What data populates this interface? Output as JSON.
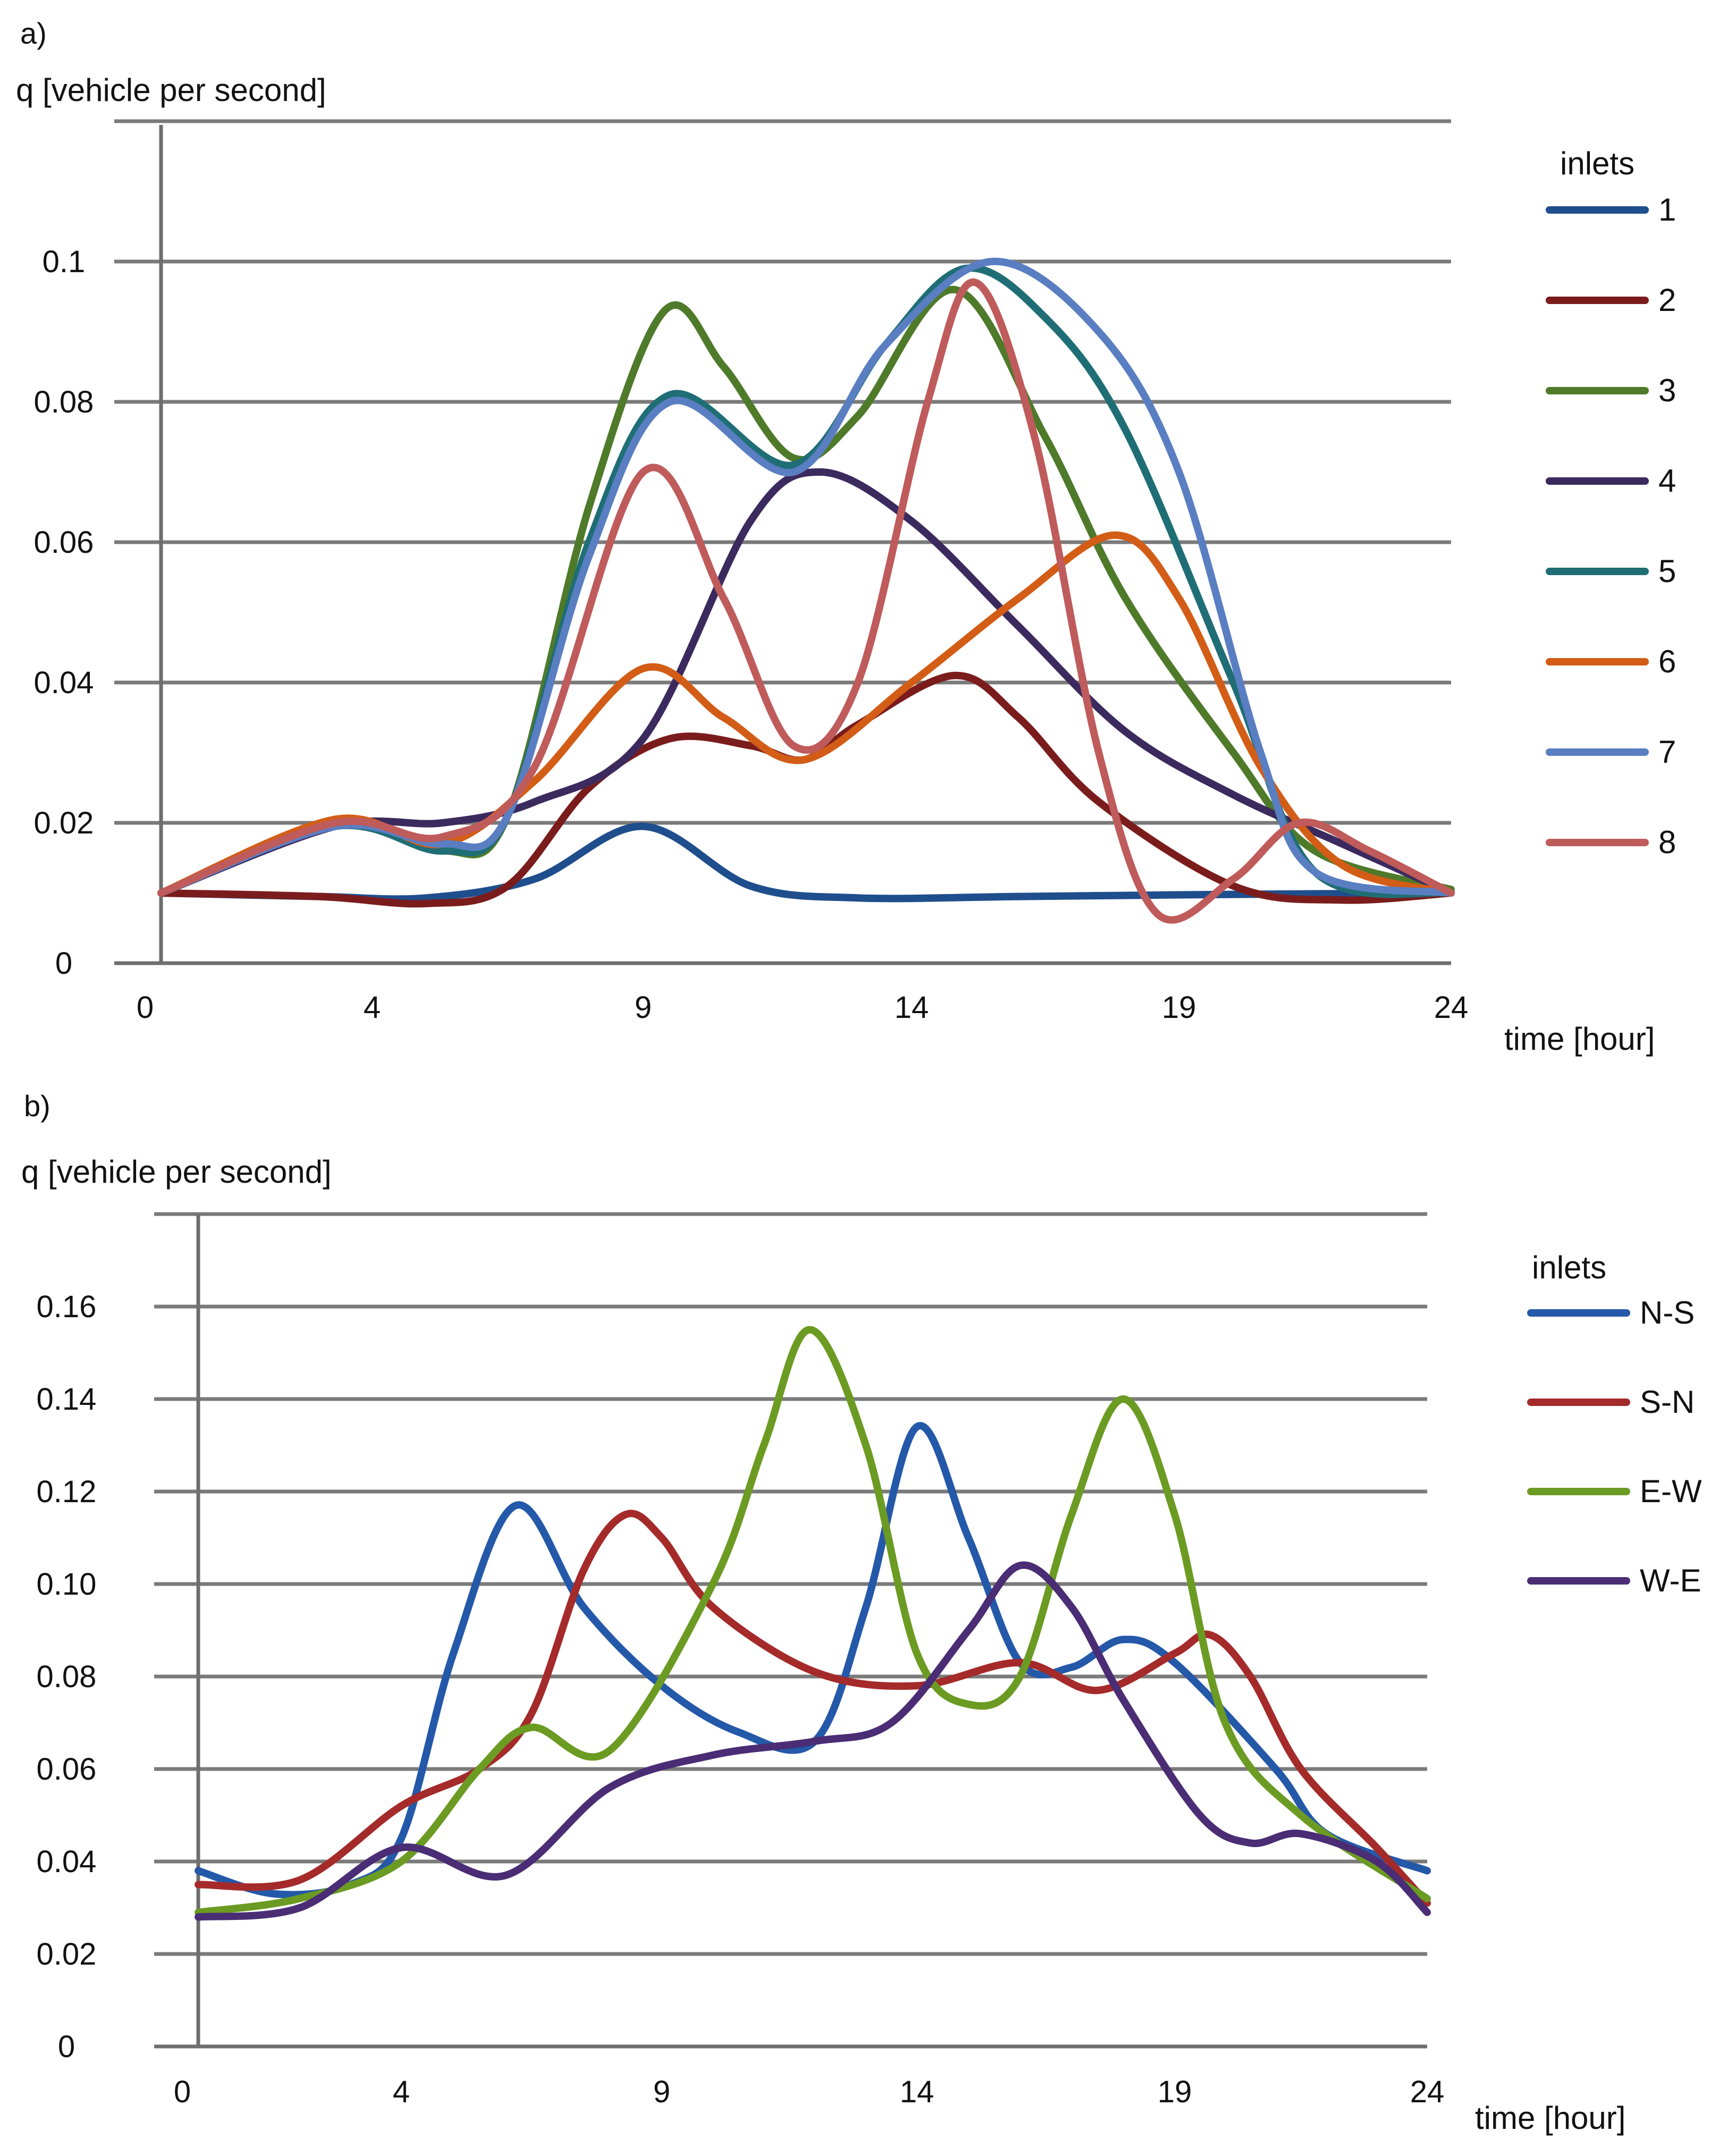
{
  "chart_data": [
    {
      "type": "line",
      "panel_label": "a)",
      "ylabel": "q [vehicle per second]",
      "xlabel": "time [hour]",
      "xlim": [
        0,
        24
      ],
      "ylim": [
        0,
        0.12
      ],
      "x_ticks": [
        {
          "value": 0,
          "label": "0"
        },
        {
          "value": 4,
          "label": "4"
        },
        {
          "value": 9,
          "label": "9"
        },
        {
          "value": 14,
          "label": "14"
        },
        {
          "value": 19,
          "label": "19"
        },
        {
          "value": 24,
          "label": "24"
        }
      ],
      "y_ticks": [
        {
          "value": 0,
          "label": "0"
        },
        {
          "value": 0.02,
          "label": "0.02"
        },
        {
          "value": 0.04,
          "label": "0.04"
        },
        {
          "value": 0.06,
          "label": "0.06"
        },
        {
          "value": 0.08,
          "label": "0.08"
        },
        {
          "value": 0.1,
          "label": "0.1"
        }
      ],
      "gridlines": [
        0.02,
        0.04,
        0.06,
        0.08,
        0.1,
        0.12
      ],
      "legend_title": "inlets",
      "legend_position": "right",
      "series": [
        {
          "name": "1",
          "color": "#1f4e8c",
          "points": [
            [
              0,
              0.01
            ],
            [
              3,
              0.0095
            ],
            [
              5,
              0.0093
            ],
            [
              7,
              0.012
            ],
            [
              9,
              0.0195
            ],
            [
              11,
              0.011
            ],
            [
              13,
              0.0093
            ],
            [
              16,
              0.0095
            ],
            [
              20,
              0.0098
            ],
            [
              24,
              0.01
            ]
          ]
        },
        {
          "name": "2",
          "color": "#7b1c1c",
          "points": [
            [
              0,
              0.01
            ],
            [
              3,
              0.0095
            ],
            [
              5,
              0.0085
            ],
            [
              6.5,
              0.011
            ],
            [
              8,
              0.025
            ],
            [
              9.5,
              0.032
            ],
            [
              11,
              0.031
            ],
            [
              12,
              0.029
            ],
            [
              13,
              0.034
            ],
            [
              14.8,
              0.041
            ],
            [
              16,
              0.035
            ],
            [
              17.5,
              0.023
            ],
            [
              20,
              0.011
            ],
            [
              22,
              0.009
            ],
            [
              24,
              0.01
            ]
          ]
        },
        {
          "name": "3",
          "color": "#4e7a2a",
          "points": [
            [
              0,
              0.01
            ],
            [
              3.3,
              0.02
            ],
            [
              5.3,
              0.016
            ],
            [
              6.5,
              0.021
            ],
            [
              8,
              0.065
            ],
            [
              9.4,
              0.093
            ],
            [
              10.5,
              0.085
            ],
            [
              11.8,
              0.072
            ],
            [
              13,
              0.078
            ],
            [
              14.8,
              0.096
            ],
            [
              16.5,
              0.075
            ],
            [
              18,
              0.052
            ],
            [
              20,
              0.03
            ],
            [
              21.5,
              0.016
            ],
            [
              24,
              0.0105
            ]
          ]
        },
        {
          "name": "4",
          "color": "#3b2a5e",
          "points": [
            [
              0,
              0.01
            ],
            [
              3.3,
              0.0195
            ],
            [
              5.3,
              0.02
            ],
            [
              7,
              0.023
            ],
            [
              9,
              0.032
            ],
            [
              11,
              0.063
            ],
            [
              12.3,
              0.07
            ],
            [
              14,
              0.063
            ],
            [
              16,
              0.048
            ],
            [
              18,
              0.033
            ],
            [
              20,
              0.024
            ],
            [
              22,
              0.017
            ],
            [
              24,
              0.01
            ]
          ]
        },
        {
          "name": "5",
          "color": "#1f6e75",
          "points": [
            [
              0,
              0.01
            ],
            [
              3.3,
              0.0195
            ],
            [
              5.3,
              0.016
            ],
            [
              6.5,
              0.021
            ],
            [
              8,
              0.06
            ],
            [
              9.5,
              0.081
            ],
            [
              11.8,
              0.071
            ],
            [
              13.5,
              0.088
            ],
            [
              15,
              0.099
            ],
            [
              16.5,
              0.092
            ],
            [
              18,
              0.076
            ],
            [
              20,
              0.04
            ],
            [
              21.5,
              0.013
            ],
            [
              24,
              0.01
            ]
          ]
        },
        {
          "name": "6",
          "color": "#d35d16",
          "points": [
            [
              0,
              0.01
            ],
            [
              3.3,
              0.0205
            ],
            [
              5.3,
              0.017
            ],
            [
              7,
              0.026
            ],
            [
              9,
              0.042
            ],
            [
              10.5,
              0.035
            ],
            [
              12,
              0.029
            ],
            [
              14,
              0.04
            ],
            [
              16,
              0.052
            ],
            [
              17.8,
              0.061
            ],
            [
              19,
              0.052
            ],
            [
              20.5,
              0.028
            ],
            [
              22,
              0.014
            ],
            [
              24,
              0.01
            ]
          ]
        },
        {
          "name": "7",
          "color": "#5a7ec2",
          "points": [
            [
              0,
              0.01
            ],
            [
              3.3,
              0.0195
            ],
            [
              5.3,
              0.017
            ],
            [
              6.5,
              0.021
            ],
            [
              8,
              0.058
            ],
            [
              9.5,
              0.08
            ],
            [
              11.8,
              0.07
            ],
            [
              13.5,
              0.088
            ],
            [
              15.5,
              0.1
            ],
            [
              17.5,
              0.09
            ],
            [
              19,
              0.07
            ],
            [
              20.5,
              0.03
            ],
            [
              21.5,
              0.013
            ],
            [
              24,
              0.01
            ]
          ]
        },
        {
          "name": "8",
          "color": "#bf5b5b",
          "points": [
            [
              0,
              0.01
            ],
            [
              3.3,
              0.02
            ],
            [
              5.3,
              0.018
            ],
            [
              7,
              0.028
            ],
            [
              9,
              0.07
            ],
            [
              10.5,
              0.052
            ],
            [
              11.8,
              0.031
            ],
            [
              13,
              0.04
            ],
            [
              14.3,
              0.08
            ],
            [
              15.2,
              0.097
            ],
            [
              16.3,
              0.075
            ],
            [
              17.5,
              0.03
            ],
            [
              18.6,
              0.007
            ],
            [
              20,
              0.012
            ],
            [
              21.2,
              0.02
            ],
            [
              22.5,
              0.016
            ],
            [
              24,
              0.01
            ]
          ]
        }
      ]
    },
    {
      "type": "line",
      "panel_label": "b)",
      "ylabel": "q [vehicle per second]",
      "xlabel": "time [hour]",
      "xlim": [
        0,
        24
      ],
      "ylim": [
        0,
        0.18
      ],
      "x_ticks": [
        {
          "value": 0,
          "label": "0"
        },
        {
          "value": 4,
          "label": "4"
        },
        {
          "value": 9,
          "label": "9"
        },
        {
          "value": 14,
          "label": "14"
        },
        {
          "value": 19,
          "label": "19"
        },
        {
          "value": 24,
          "label": "24"
        }
      ],
      "y_ticks": [
        {
          "value": 0,
          "label": "0"
        },
        {
          "value": 0.02,
          "label": "0.02"
        },
        {
          "value": 0.04,
          "label": "0.04"
        },
        {
          "value": 0.06,
          "label": "0.06"
        },
        {
          "value": 0.08,
          "label": "0.08"
        },
        {
          "value": 0.1,
          "label": "0.10"
        },
        {
          "value": 0.12,
          "label": "0.12"
        },
        {
          "value": 0.14,
          "label": "0.14"
        },
        {
          "value": 0.16,
          "label": "0.16"
        }
      ],
      "gridlines": [
        0.02,
        0.04,
        0.06,
        0.08,
        0.1,
        0.12,
        0.14,
        0.16,
        0.18
      ],
      "legend_title": "inlets",
      "legend_position": "right",
      "series": [
        {
          "name": "N-S",
          "color": "#2458a8",
          "points": [
            [
              0,
              0.038
            ],
            [
              1.5,
              0.033
            ],
            [
              3,
              0.035
            ],
            [
              4,
              0.045
            ],
            [
              5,
              0.085
            ],
            [
              6.2,
              0.117
            ],
            [
              7.5,
              0.095
            ],
            [
              9,
              0.078
            ],
            [
              10.5,
              0.068
            ],
            [
              12,
              0.066
            ],
            [
              13,
              0.095
            ],
            [
              14,
              0.134
            ],
            [
              15,
              0.11
            ],
            [
              16,
              0.083
            ],
            [
              17,
              0.082
            ],
            [
              18,
              0.088
            ],
            [
              19,
              0.083
            ],
            [
              21,
              0.06
            ],
            [
              22,
              0.046
            ],
            [
              24,
              0.038
            ]
          ]
        },
        {
          "name": "S-N",
          "color": "#a52a2a",
          "points": [
            [
              0,
              0.035
            ],
            [
              2,
              0.036
            ],
            [
              4,
              0.052
            ],
            [
              5.5,
              0.06
            ],
            [
              6.5,
              0.072
            ],
            [
              7.5,
              0.103
            ],
            [
              8.3,
              0.115
            ],
            [
              9,
              0.11
            ],
            [
              10,
              0.095
            ],
            [
              12,
              0.081
            ],
            [
              14,
              0.078
            ],
            [
              16,
              0.083
            ],
            [
              17.5,
              0.077
            ],
            [
              19,
              0.085
            ],
            [
              19.7,
              0.089
            ],
            [
              20.5,
              0.08
            ],
            [
              21.5,
              0.06
            ],
            [
              23,
              0.043
            ],
            [
              24,
              0.031
            ]
          ]
        },
        {
          "name": "E-W",
          "color": "#6b9b22",
          "points": [
            [
              0,
              0.029
            ],
            [
              2,
              0.032
            ],
            [
              4,
              0.04
            ],
            [
              5.5,
              0.06
            ],
            [
              6.5,
              0.069
            ],
            [
              8,
              0.064
            ],
            [
              10,
              0.1
            ],
            [
              11,
              0.13
            ],
            [
              11.9,
              0.155
            ],
            [
              13,
              0.13
            ],
            [
              14,
              0.085
            ],
            [
              15,
              0.074
            ],
            [
              16,
              0.08
            ],
            [
              17,
              0.115
            ],
            [
              18,
              0.14
            ],
            [
              19,
              0.115
            ],
            [
              20,
              0.07
            ],
            [
              21.5,
              0.05
            ],
            [
              24,
              0.032
            ]
          ]
        },
        {
          "name": "W-E",
          "color": "#4a2d74",
          "points": [
            [
              0,
              0.028
            ],
            [
              2,
              0.03
            ],
            [
              4,
              0.043
            ],
            [
              6,
              0.037
            ],
            [
              8,
              0.056
            ],
            [
              10,
              0.063
            ],
            [
              12,
              0.066
            ],
            [
              13.5,
              0.07
            ],
            [
              15,
              0.09
            ],
            [
              16,
              0.104
            ],
            [
              17,
              0.095
            ],
            [
              18,
              0.075
            ],
            [
              19.5,
              0.05
            ],
            [
              20.5,
              0.044
            ],
            [
              21.5,
              0.046
            ],
            [
              23,
              0.04
            ],
            [
              24,
              0.029
            ]
          ]
        }
      ]
    }
  ]
}
